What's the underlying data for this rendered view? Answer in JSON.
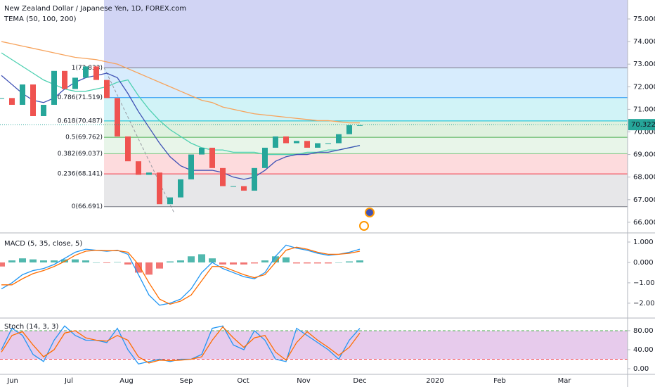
{
  "header": {
    "title": "New Zealand Dollar / Japanese Yen, 1D, FOREX.com",
    "indicator": "TEMA (50, 100, 200)"
  },
  "x_axis": {
    "labels": [
      "Jun",
      "Jul",
      "Aug",
      "Sep",
      "Oct",
      "Nov",
      "Dec",
      "2020",
      "Feb",
      "Mar"
    ]
  },
  "chart_data": [
    {
      "type": "candles",
      "ylim": [
        65.56,
        75.84
      ],
      "yticks": [
        {
          "value": 66,
          "label": "66.000"
        },
        {
          "value": 67,
          "label": "67.000"
        },
        {
          "value": 68,
          "label": "68.000"
        },
        {
          "value": 69,
          "label": "69.000"
        },
        {
          "value": 70,
          "label": "70.000"
        },
        {
          "value": 71,
          "label": "71.000"
        },
        {
          "value": 72,
          "label": "72.000"
        },
        {
          "value": 73,
          "label": "73.000"
        },
        {
          "value": 74,
          "label": "74.000"
        },
        {
          "value": 75,
          "label": "75.000"
        }
      ],
      "last_price": {
        "value": 70.322,
        "label": "70.322"
      },
      "up_color": "#26a69a",
      "down_color": "#ef5350",
      "values": [
        71.5,
        71.2,
        72.1,
        70.7,
        71.2,
        72.7,
        71.9,
        72.4,
        72.9,
        72.3,
        71.5,
        69.8,
        68.7,
        68.1,
        68.2,
        66.8,
        67.1,
        67.9,
        69.0,
        69.3,
        68.4,
        67.6,
        67.6,
        67.4,
        68.4,
        69.3,
        69.8,
        69.5,
        69.6,
        69.3,
        69.5,
        69.5,
        69.9,
        70.3,
        70.3
      ],
      "fib_levels": [
        {
          "value": 72.833,
          "label": "1(72.833)",
          "color": "#787b86"
        },
        {
          "value": 71.519,
          "label": "0.786(71.519)",
          "color": "#2196f3"
        },
        {
          "value": 70.487,
          "label": "0.618(70.487)",
          "color": "#00bcd4"
        },
        {
          "value": 69.762,
          "label": "0.5(69.762)",
          "color": "#4caf50"
        },
        {
          "value": 69.037,
          "label": "0.382(69.037)",
          "color": "#81c784"
        },
        {
          "value": 68.141,
          "label": "0.236(68.141)",
          "color": "#f23645"
        },
        {
          "value": 66.691,
          "label": "0(66.691)",
          "color": "#787b86"
        }
      ],
      "series": [
        {
          "color": "#f7a35c",
          "values": [
            74.0,
            73.9,
            73.8,
            73.7,
            73.6,
            73.5,
            73.4,
            73.3,
            73.25,
            73.2,
            73.1,
            73.0,
            72.8,
            72.6,
            72.4,
            72.2,
            72.0,
            71.8,
            71.6,
            71.4,
            71.3,
            71.1,
            71.0,
            70.9,
            70.8,
            70.75,
            70.7,
            70.65,
            70.6,
            70.55,
            70.5,
            70.5,
            70.45,
            70.4,
            70.4
          ]
        },
        {
          "color": "#4dd0b1",
          "values": [
            73.5,
            73.2,
            72.9,
            72.6,
            72.3,
            72.1,
            71.9,
            71.8,
            71.8,
            71.9,
            72.0,
            72.2,
            72.3,
            71.6,
            71.0,
            70.5,
            70.1,
            69.8,
            69.5,
            69.3,
            69.2,
            69.2,
            69.1,
            69.1,
            69.1,
            69.0,
            69.0,
            69.0,
            69.0,
            69.1,
            69.1,
            69.2,
            69.2,
            69.3,
            69.4
          ]
        },
        {
          "color": "#3f51b5",
          "values": [
            72.5,
            72.1,
            71.7,
            71.4,
            71.3,
            71.5,
            71.9,
            72.2,
            72.4,
            72.5,
            72.6,
            72.4,
            71.7,
            70.9,
            70.2,
            69.5,
            68.9,
            68.5,
            68.3,
            68.3,
            68.3,
            68.2,
            68.0,
            67.9,
            68.0,
            68.3,
            68.7,
            68.9,
            69.0,
            69.0,
            69.1,
            69.1,
            69.2,
            69.3,
            69.4
          ]
        }
      ]
    },
    {
      "type": "macd",
      "title": "MACD (5, 35, close, 5)",
      "ylim": [
        -2.66,
        1.38
      ],
      "yticks": [
        {
          "value": 1,
          "label": "1.000"
        },
        {
          "value": 0,
          "label": "0.000"
        },
        {
          "value": -1,
          "label": "−1.000"
        },
        {
          "value": -2,
          "label": "−2.000"
        }
      ],
      "histogram": {
        "up_color": "#26a69a",
        "down_color": "#ef5350",
        "values": [
          -0.2,
          0.1,
          0.2,
          0.15,
          0.1,
          0.1,
          0.15,
          0.15,
          0.1,
          0.0,
          -0.03,
          0.02,
          -0.1,
          -0.5,
          -0.6,
          -0.3,
          0.05,
          0.1,
          0.3,
          0.4,
          0.2,
          -0.1,
          -0.1,
          -0.1,
          -0.05,
          0.1,
          0.3,
          0.25,
          -0.05,
          -0.05,
          -0.05,
          -0.05,
          0.0,
          0.05,
          0.1
        ]
      },
      "series": [
        {
          "color": "#2196f3",
          "values": [
            -1.3,
            -1.0,
            -0.6,
            -0.4,
            -0.3,
            -0.1,
            0.2,
            0.5,
            0.65,
            0.6,
            0.55,
            0.6,
            0.4,
            -0.6,
            -1.6,
            -2.1,
            -2.0,
            -1.8,
            -1.3,
            -0.5,
            0.0,
            -0.3,
            -0.5,
            -0.7,
            -0.8,
            -0.5,
            0.3,
            0.85,
            0.7,
            0.6,
            0.45,
            0.35,
            0.4,
            0.5,
            0.65
          ]
        },
        {
          "color": "#ff6d00",
          "values": [
            -1.1,
            -1.1,
            -0.8,
            -0.55,
            -0.4,
            -0.2,
            0.05,
            0.35,
            0.55,
            0.6,
            0.58,
            0.58,
            0.5,
            -0.1,
            -1.0,
            -1.8,
            -2.05,
            -1.9,
            -1.6,
            -0.9,
            -0.2,
            -0.2,
            -0.4,
            -0.6,
            -0.75,
            -0.6,
            0.0,
            0.6,
            0.75,
            0.65,
            0.5,
            0.4,
            0.4,
            0.45,
            0.55
          ]
        }
      ]
    },
    {
      "type": "stoch",
      "title": "Stoch (14, 3, 3)",
      "ylim": [
        -11.9,
        102.2
      ],
      "yticks": [
        {
          "value": 80,
          "label": "80.00"
        },
        {
          "value": 40,
          "label": "40.00"
        },
        {
          "value": 0,
          "label": "0.00"
        }
      ],
      "band": [
        20,
        80
      ],
      "band_color": "#e1bee7",
      "series": [
        {
          "color": "#2196f3",
          "values": [
            40,
            85,
            70,
            30,
            15,
            60,
            90,
            70,
            60,
            60,
            55,
            85,
            40,
            10,
            15,
            20,
            15,
            20,
            20,
            30,
            85,
            90,
            50,
            40,
            80,
            60,
            20,
            15,
            85,
            70,
            55,
            40,
            20,
            60,
            85
          ]
        },
        {
          "color": "#ff6d00",
          "values": [
            35,
            70,
            78,
            50,
            25,
            40,
            75,
            80,
            65,
            60,
            58,
            70,
            60,
            25,
            12,
            18,
            17,
            18,
            20,
            25,
            60,
            88,
            65,
            45,
            65,
            70,
            35,
            18,
            55,
            78,
            60,
            45,
            28,
            45,
            75
          ]
        }
      ]
    }
  ]
}
